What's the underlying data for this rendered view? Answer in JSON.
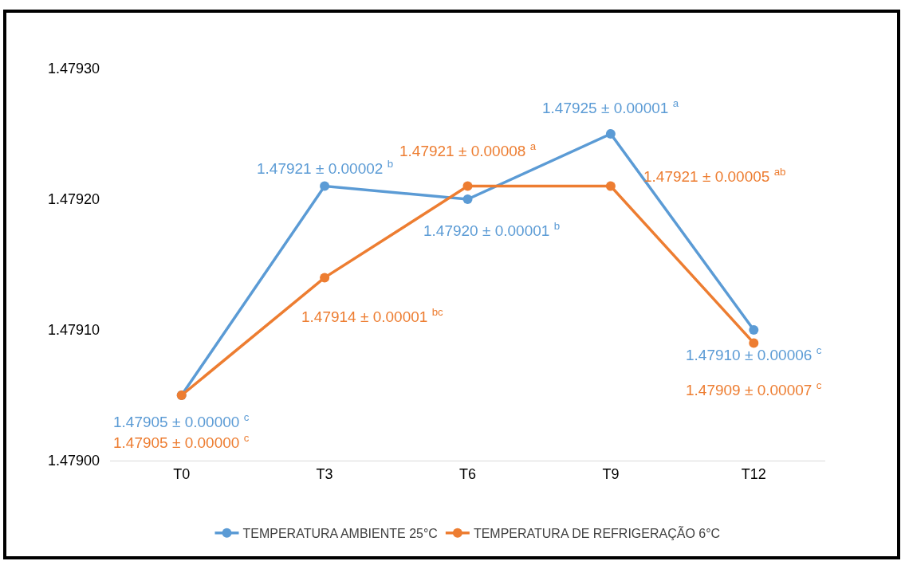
{
  "chart_data": {
    "type": "line",
    "categories": [
      "T0",
      "T3",
      "T6",
      "T9",
      "T12"
    ],
    "series": [
      {
        "name": "TEMPERATURA AMBIENTE 25°C",
        "color": "#5b9bd5",
        "values": [
          1.47905,
          1.47921,
          1.4792,
          1.47925,
          1.4791
        ],
        "value_labels": [
          "1.47905 ± 0.00000 $^{c}$",
          "1.47921 ± 0.00002 $^{b}$",
          "1.47920 ± 0.00001 $^{b}$",
          "1.47925 ± 0.00001 $^{a}$",
          "1.47910 ± 0.00006 $^{c}$"
        ]
      },
      {
        "name": "TEMPERATURA DE REFRIGERAÇÃO 6°C",
        "color": "#ed7d31",
        "values": [
          1.47905,
          1.47914,
          1.47921,
          1.47921,
          1.47909
        ],
        "value_labels": [
          "1.47905 ± 0.00000 $^{c}$",
          "1.47914 ± 0.00001 $^{bc}$",
          "1.47921 ± 0.00008 $^{a}$",
          "1.47921 ± 0.00005 $^{ab}$",
          "1.47909 ± 0.00007 $^{c}$"
        ]
      }
    ],
    "ylim": [
      1.479,
      1.4793
    ],
    "yticks": [
      {
        "value": 1.479,
        "label": "1.47900"
      },
      {
        "value": 1.4791,
        "label": "1.47910"
      },
      {
        "value": 1.4792,
        "label": "1.47920"
      },
      {
        "value": 1.4793,
        "label": "1.47930"
      }
    ],
    "grid": false,
    "legend": "bottom",
    "marker": "circle",
    "line_style": "solid"
  }
}
